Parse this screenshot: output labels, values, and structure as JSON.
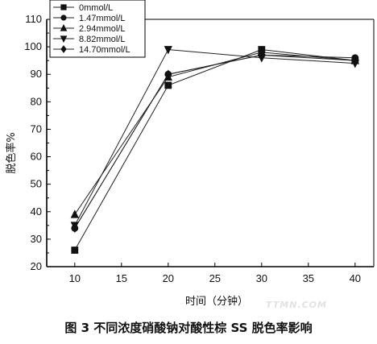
{
  "caption": "图 3   不同浓度硝酸钠对酸性棕 SS 脱色率影响",
  "watermark": "TTMN.COM",
  "chart_data": {
    "type": "line",
    "xlabel": "时间（分钟）",
    "ylabel": "脱色率%",
    "x": [
      10,
      20,
      30,
      40
    ],
    "xlim": [
      7,
      42
    ],
    "ylim": [
      20,
      110
    ],
    "xticks": [
      10,
      15,
      20,
      25,
      30,
      35,
      40
    ],
    "yticks": [
      20,
      30,
      40,
      50,
      60,
      70,
      80,
      90,
      100,
      110
    ],
    "grid": false,
    "legend_position": "top-left",
    "series": [
      {
        "name": "0mmol/L",
        "marker": "square",
        "values": [
          26,
          86,
          99,
          95
        ]
      },
      {
        "name": "1.47mmol/L",
        "marker": "circle",
        "values": [
          34,
          90,
          97,
          96
        ]
      },
      {
        "name": "2.94mmol/L",
        "marker": "triangle-up",
        "values": [
          39,
          89,
          98,
          95
        ]
      },
      {
        "name": "8.82mmol/L",
        "marker": "triangle-down",
        "values": [
          35,
          99,
          96,
          94
        ]
      },
      {
        "name": "14.70mmol/L",
        "marker": "diamond",
        "values": [
          34,
          90,
          97,
          95
        ]
      }
    ]
  }
}
